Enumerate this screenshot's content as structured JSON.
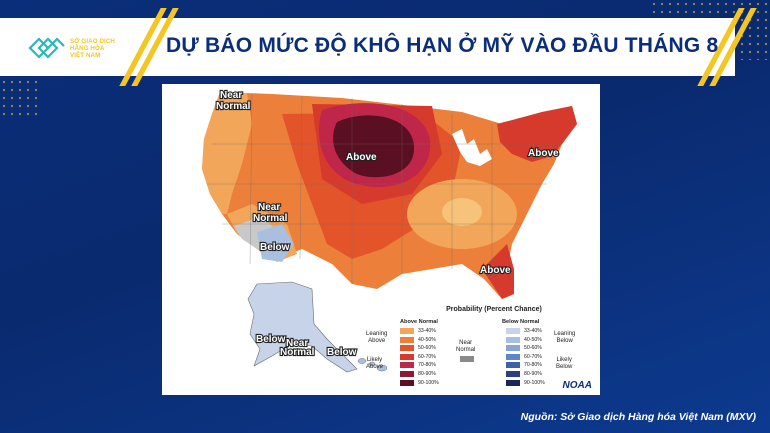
{
  "header": {
    "logo_text": [
      "SỞ GIAO DỊCH",
      "HÀNG HÓA",
      "VIỆT NAM"
    ],
    "title": "DỰ BÁO MỨC ĐỘ KHÔ HẠN Ở MỸ VÀO ĐẦU THÁNG 8"
  },
  "map": {
    "labels": {
      "near_normal_nw": [
        "Near",
        "Normal"
      ],
      "above_north": "Above",
      "above_northeast": "Above",
      "near_normal_sw": [
        "Near",
        "Normal"
      ],
      "below_sw": "Below",
      "above_southeast": "Above",
      "below_alaska": "Below",
      "near_normal_alaska": [
        "Near",
        "Normal"
      ],
      "below_alaska_se": "Below"
    },
    "legend": {
      "title": "Probability (Percent Chance)",
      "above_normal_title": "Above Normal",
      "below_normal_title": "Below Normal",
      "above_levels": [
        "33-40%",
        "40-50%",
        "50-60%",
        "60-70%",
        "70-80%",
        "80-90%",
        "90-100%"
      ],
      "below_levels": [
        "33-40%",
        "40-50%",
        "50-60%",
        "60-70%",
        "70-80%",
        "80-90%",
        "90-100%"
      ],
      "above_colors": [
        "#f2a65a",
        "#ec7f3a",
        "#e4542a",
        "#d63a2c",
        "#c0264a",
        "#8b1a36",
        "#5a0f22"
      ],
      "below_colors": [
        "#c6d3e8",
        "#a8bfe0",
        "#88a6d6",
        "#5f87c4",
        "#3c62a8",
        "#2a3f85",
        "#1a2660"
      ],
      "near_normal_label": [
        "Near",
        "Normal"
      ],
      "near_normal_color": "#8a8a8a",
      "leaning_above": [
        "Leaning",
        "Above"
      ],
      "likely_above": [
        "Likely",
        "Above"
      ],
      "leaning_below": [
        "Leaning",
        "Below"
      ],
      "likely_below": [
        "Likely",
        "Below"
      ]
    },
    "agency": "NOAA"
  },
  "source": "Nguồn: Sở Giao dịch Hàng hóa Việt Nam (MXV)"
}
